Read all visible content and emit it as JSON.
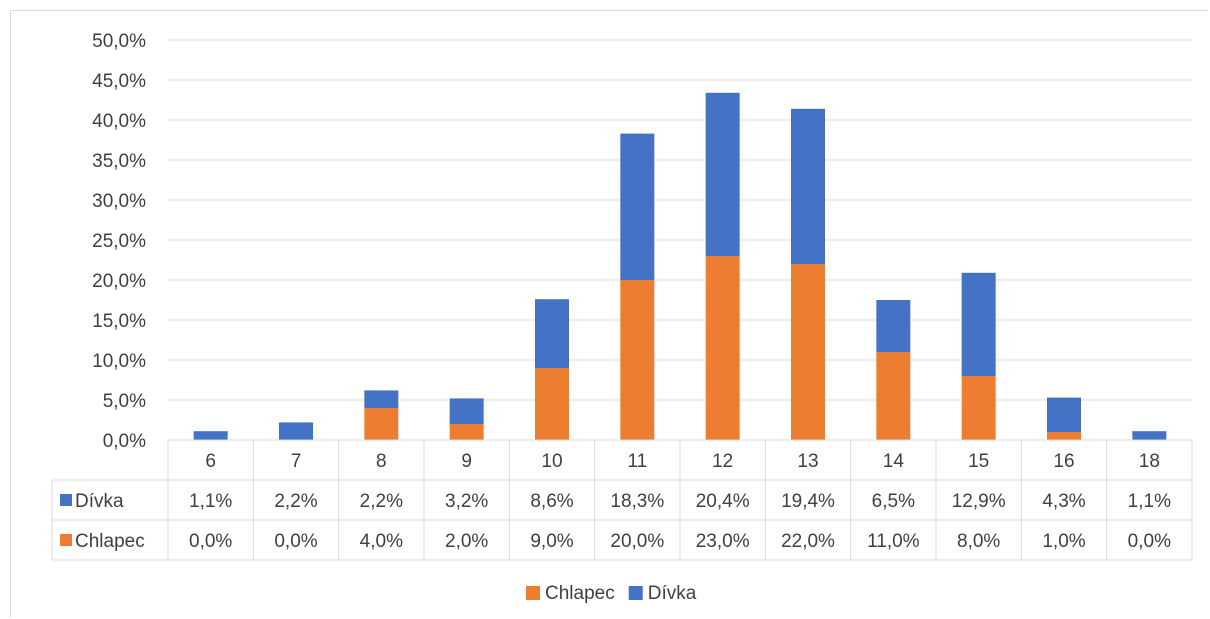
{
  "chart_data": {
    "type": "bar",
    "stacked": true,
    "categories": [
      "6",
      "7",
      "8",
      "9",
      "10",
      "11",
      "12",
      "13",
      "14",
      "15",
      "16",
      "18"
    ],
    "series": [
      {
        "name": "Chlapec",
        "color": "#ED7D31",
        "values": [
          0.0,
          0.0,
          4.0,
          2.0,
          9.0,
          20.0,
          23.0,
          22.0,
          11.0,
          8.0,
          1.0,
          0.0
        ],
        "labels": [
          "0,0%",
          "0,0%",
          "4,0%",
          "2,0%",
          "9,0%",
          "20,0%",
          "23,0%",
          "22,0%",
          "11,0%",
          "8,0%",
          "1,0%",
          "0,0%"
        ]
      },
      {
        "name": "Dívka",
        "color": "#4472C4",
        "values": [
          1.1,
          2.2,
          2.2,
          3.2,
          8.6,
          18.3,
          20.4,
          19.4,
          6.5,
          12.9,
          4.3,
          1.1
        ],
        "labels": [
          "1,1%",
          "2,2%",
          "2,2%",
          "3,2%",
          "8,6%",
          "18,3%",
          "20,4%",
          "19,4%",
          "6,5%",
          "12,9%",
          "4,3%",
          "1,1%"
        ]
      }
    ],
    "ylim": [
      0,
      50
    ],
    "yticks": [
      "0,0%",
      "5,0%",
      "10,0%",
      "15,0%",
      "20,0%",
      "25,0%",
      "30,0%",
      "35,0%",
      "40,0%",
      "45,0%",
      "50,0%"
    ],
    "data_table_rows": [
      "Dívka",
      "Chlapec"
    ],
    "legend": {
      "position": "bottom",
      "entries": [
        "Chlapec",
        "Dívka"
      ]
    },
    "grid": true,
    "gridColor": "#d9d9d9"
  }
}
